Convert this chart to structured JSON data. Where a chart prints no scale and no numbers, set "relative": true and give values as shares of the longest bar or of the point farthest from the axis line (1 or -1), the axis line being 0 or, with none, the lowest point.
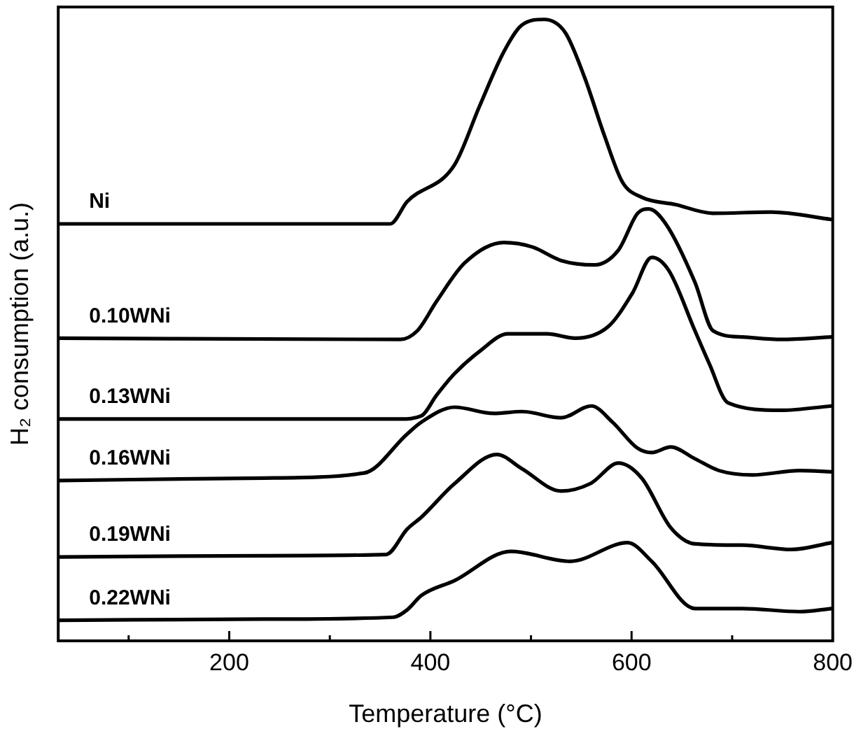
{
  "chart_data": {
    "type": "line",
    "xlabel": "Temperature (°C)",
    "ylabel": "H₂ consumption (a.u.)",
    "relative": true,
    "xlim": [
      30,
      800
    ],
    "xticks": [
      {
        "value": 100,
        "label": null
      },
      200,
      {
        "value": 300,
        "label": null
      },
      400,
      {
        "value": 500,
        "label": null
      },
      600,
      {
        "value": 700,
        "label": null
      },
      800
    ],
    "grid": false,
    "legend": false,
    "marker": "none",
    "line_style": "solid",
    "series": [
      {
        "name": "Ni",
        "color": "#000000",
        "x": [
          30,
          360,
          377,
          424,
          449,
          473,
          491,
          513,
          534,
          553,
          573,
          591,
          610,
          644,
          681,
          739,
          799
        ],
        "values": [
          0.671,
          0.671,
          0.707,
          0.766,
          0.861,
          0.948,
          0.991,
          1.0,
          0.979,
          0.908,
          0.813,
          0.738,
          0.714,
          0.702,
          0.688,
          0.69,
          0.678
        ]
      },
      {
        "name": "0.10WNi",
        "color": "#000000",
        "x": [
          30,
          370,
          387,
          406,
          434,
          473,
          501,
          530,
          563,
          587,
          606,
          617,
          634,
          663,
          681,
          710,
          749,
          799
        ],
        "values": [
          0.487,
          0.485,
          0.499,
          0.546,
          0.608,
          0.641,
          0.634,
          0.612,
          0.605,
          0.629,
          0.688,
          0.695,
          0.671,
          0.577,
          0.499,
          0.489,
          0.485,
          0.489
        ]
      },
      {
        "name": "0.13WNi",
        "color": "#000000",
        "x": [
          30,
          370,
          391,
          406,
          424,
          449,
          477,
          516,
          544,
          577,
          601,
          620,
          637,
          663,
          677,
          696,
          749,
          799
        ],
        "values": [
          0.357,
          0.357,
          0.362,
          0.395,
          0.43,
          0.466,
          0.494,
          0.494,
          0.487,
          0.506,
          0.56,
          0.617,
          0.596,
          0.499,
          0.447,
          0.383,
          0.371,
          0.378
        ]
      },
      {
        "name": "0.16WNi",
        "color": "#000000",
        "x": [
          30,
          234,
          334,
          377,
          391,
          424,
          463,
          491,
          530,
          560,
          581,
          606,
          620,
          639,
          663,
          687,
          720,
          767,
          799
        ],
        "values": [
          0.258,
          0.262,
          0.27,
          0.333,
          0.352,
          0.376,
          0.366,
          0.369,
          0.359,
          0.378,
          0.352,
          0.31,
          0.303,
          0.312,
          0.293,
          0.274,
          0.267,
          0.274,
          0.272
        ]
      },
      {
        "name": "0.19WNi",
        "color": "#000000",
        "x": [
          30,
          234,
          356,
          377,
          391,
          424,
          466,
          491,
          530,
          559,
          587,
          610,
          639,
          663,
          710,
          759,
          799
        ],
        "values": [
          0.135,
          0.137,
          0.139,
          0.18,
          0.199,
          0.253,
          0.3,
          0.277,
          0.241,
          0.253,
          0.286,
          0.262,
          0.182,
          0.156,
          0.154,
          0.147,
          0.158
        ]
      },
      {
        "name": "0.22WNi",
        "color": "#000000",
        "x": [
          30,
          234,
          363,
          377,
          391,
          424,
          480,
          539,
          596,
          620,
          663,
          710,
          767,
          799
        ],
        "values": [
          0.033,
          0.035,
          0.038,
          0.05,
          0.073,
          0.097,
          0.144,
          0.128,
          0.158,
          0.128,
          0.052,
          0.052,
          0.047,
          0.052
        ]
      }
    ]
  }
}
